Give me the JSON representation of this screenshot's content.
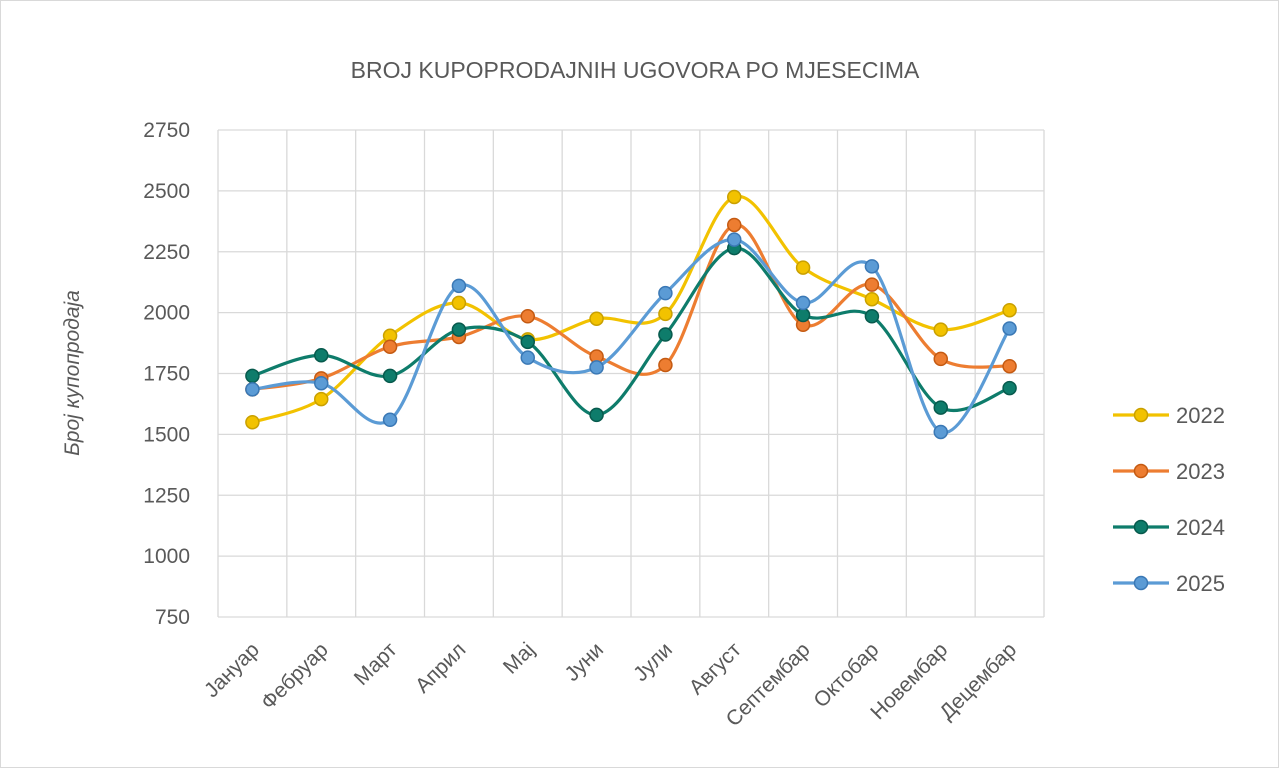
{
  "chart_data": {
    "type": "line",
    "title": "BROJ KUPOPRODAJNIH UGOVORA PO MJESECIMA",
    "xlabel": "",
    "ylabel": "Број купопродаја",
    "ylim": [
      750,
      2750
    ],
    "yticks": [
      "750",
      "1000",
      "1250",
      "1500",
      "1750",
      "2000",
      "2250",
      "2500",
      "2750"
    ],
    "grid": true,
    "smooth": true,
    "legend_position": "right",
    "categories": [
      "Јануар",
      "Фебруар",
      "Март",
      "Април",
      "Мај",
      "Јуни",
      "Јули",
      "Август",
      "Септембар",
      "Октобар",
      "Новембар",
      "Децембар"
    ],
    "series": [
      {
        "name": "2022",
        "color": "#f2c200",
        "edge": "#c9a000",
        "values": [
          1550,
          1645,
          1905,
          2040,
          1890,
          1975,
          1995,
          2475,
          2185,
          2055,
          1930,
          2010
        ]
      },
      {
        "name": "2023",
        "color": "#ed7d31",
        "edge": "#c45a12",
        "values": [
          1685,
          1730,
          1860,
          1900,
          1985,
          1820,
          1785,
          2360,
          1950,
          2115,
          1810,
          1780
        ]
      },
      {
        "name": "2024",
        "color": "#0e7c6b",
        "edge": "#075a4d",
        "values": [
          1740,
          1825,
          1740,
          1930,
          1880,
          1580,
          1910,
          2265,
          1990,
          1985,
          1610,
          1690
        ]
      },
      {
        "name": "2025",
        "color": "#5b9bd5",
        "edge": "#3a78b5",
        "values": [
          1685,
          1710,
          1560,
          2110,
          1815,
          1775,
          2080,
          2300,
          2040,
          2190,
          1510,
          1935
        ]
      }
    ]
  }
}
